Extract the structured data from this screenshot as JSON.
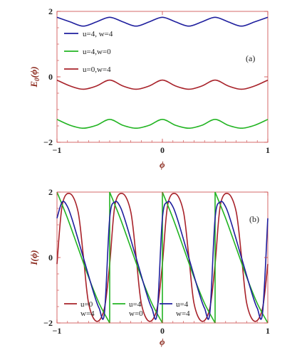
{
  "chart_data": [
    {
      "type": "line",
      "panel_label": "(a)",
      "xlabel": "ϕ",
      "ylabel": "E",
      "ylabel_sub": "0",
      "ylabel_arg": "(ϕ)",
      "xlim": [
        -1,
        1
      ],
      "ylim": [
        -2,
        2
      ],
      "xticks": [
        -1,
        0,
        1
      ],
      "yticks": [
        -2,
        0,
        2
      ],
      "xtick_labels": [
        "−1",
        "0",
        "1"
      ],
      "ytick_labels": [
        "−2",
        "0",
        "2"
      ],
      "legend_position": "upper-left",
      "series": [
        {
          "name": "u=4, w=4",
          "color": "#1f1f9e",
          "x": [
            -1,
            -0.875,
            -0.75,
            -0.625,
            -0.5,
            -0.375,
            -0.25,
            -0.125,
            0,
            0.125,
            0.25,
            0.375,
            0.5,
            0.625,
            0.75,
            0.875,
            1
          ],
          "y": [
            1.82,
            1.68,
            1.55,
            1.68,
            1.82,
            1.68,
            1.55,
            1.68,
            1.82,
            1.68,
            1.55,
            1.68,
            1.82,
            1.68,
            1.55,
            1.68,
            1.82
          ]
        },
        {
          "name": "u=4,w=0",
          "color": "#22b422",
          "x": [
            -1,
            -0.875,
            -0.75,
            -0.625,
            -0.5,
            -0.375,
            -0.25,
            -0.125,
            0,
            0.125,
            0.25,
            0.375,
            0.5,
            0.625,
            0.75,
            0.875,
            1
          ],
          "y": [
            -1.3,
            -1.48,
            -1.57,
            -1.48,
            -1.3,
            -1.48,
            -1.57,
            -1.48,
            -1.3,
            -1.48,
            -1.57,
            -1.48,
            -1.3,
            -1.48,
            -1.57,
            -1.48,
            -1.3
          ]
        },
        {
          "name": "u=0,w=4",
          "color": "#a8222a",
          "x": [
            -1,
            -0.875,
            -0.75,
            -0.625,
            -0.5,
            -0.375,
            -0.25,
            -0.125,
            0,
            0.125,
            0.25,
            0.375,
            0.5,
            0.625,
            0.75,
            0.875,
            1
          ],
          "y": [
            -0.1,
            -0.28,
            -0.38,
            -0.28,
            -0.1,
            -0.28,
            -0.38,
            -0.28,
            -0.1,
            -0.28,
            -0.38,
            -0.28,
            -0.1,
            -0.28,
            -0.38,
            -0.28,
            -0.1
          ]
        }
      ]
    },
    {
      "type": "line",
      "panel_label": "(b)",
      "xlabel": "ϕ",
      "ylabel": "I(ϕ)",
      "xlim": [
        -1,
        1
      ],
      "ylim": [
        -2,
        2
      ],
      "xticks": [
        -1,
        0,
        1
      ],
      "yticks": [
        -2,
        0,
        2
      ],
      "xtick_labels": [
        "−1",
        "0",
        "1"
      ],
      "ytick_labels": [
        "−2",
        "0",
        "2"
      ],
      "legend_position": "bottom",
      "series": [
        {
          "name": "u=0\nw=4",
          "name_lines": [
            "u=0",
            "w=4"
          ],
          "color": "#a8222a",
          "x": [
            -1,
            -0.95,
            -0.875,
            -0.8,
            -0.75,
            -0.7,
            -0.625,
            -0.55,
            -0.5,
            -0.45,
            -0.375,
            -0.3,
            -0.25,
            -0.2,
            -0.125,
            -0.05,
            0,
            0.05,
            0.125,
            0.2,
            0.25,
            0.3,
            0.375,
            0.45,
            0.5,
            0.55,
            0.625,
            0.7,
            0.75,
            0.8,
            0.875,
            0.95,
            1
          ],
          "y": [
            -0.2,
            1.6,
            1.95,
            1.4,
            0.05,
            -1.4,
            -1.95,
            -1.55,
            -0.2,
            1.6,
            1.95,
            1.4,
            0.05,
            -1.4,
            -1.95,
            -1.55,
            -0.2,
            1.6,
            1.95,
            1.4,
            0.05,
            -1.4,
            -1.95,
            -1.55,
            -0.2,
            1.6,
            1.95,
            1.4,
            0.05,
            -1.4,
            -1.95,
            -1.55,
            -0.2
          ]
        },
        {
          "name": "u=4\nw=0",
          "name_lines": [
            "u=4",
            "w=0"
          ],
          "color": "#22b422",
          "x": [
            -1,
            -0.9,
            -0.8,
            -0.7,
            -0.6,
            -0.5,
            -0.5,
            -0.4,
            -0.3,
            -0.2,
            -0.1,
            0,
            0,
            0.1,
            0.2,
            0.3,
            0.4,
            0.5,
            0.5,
            0.6,
            0.7,
            0.8,
            0.9,
            1
          ],
          "y": [
            2.0,
            1.2,
            0.3,
            -0.6,
            -1.4,
            -2.0,
            2.0,
            1.2,
            0.3,
            -0.6,
            -1.4,
            -2.0,
            2.0,
            1.2,
            0.3,
            -0.6,
            -1.4,
            -2.0,
            2.0,
            1.2,
            0.3,
            -0.6,
            -1.4,
            -2.0
          ]
        },
        {
          "name": "u=4\nw=4",
          "name_lines": [
            "u=4",
            "w=4"
          ],
          "color": "#1f1f9e",
          "x": [
            -1,
            -0.95,
            -0.9,
            -0.85,
            -0.75,
            -0.65,
            -0.6,
            -0.55,
            -0.5,
            -0.45,
            -0.4,
            -0.35,
            -0.25,
            -0.15,
            -0.1,
            -0.05,
            0,
            0.05,
            0.1,
            0.15,
            0.25,
            0.35,
            0.4,
            0.45,
            0.5,
            0.55,
            0.6,
            0.65,
            0.75,
            0.85,
            0.9,
            0.95,
            1
          ],
          "y": [
            1.2,
            1.7,
            1.55,
            1.1,
            0.0,
            -1.1,
            -1.55,
            -1.7,
            1.2,
            1.7,
            1.55,
            1.1,
            0.0,
            -1.1,
            -1.55,
            -1.7,
            1.2,
            1.7,
            1.55,
            1.1,
            0.0,
            -1.1,
            -1.55,
            -1.7,
            1.2,
            1.7,
            1.55,
            1.1,
            0.0,
            -1.1,
            -1.55,
            -1.7,
            1.2
          ]
        }
      ]
    }
  ]
}
